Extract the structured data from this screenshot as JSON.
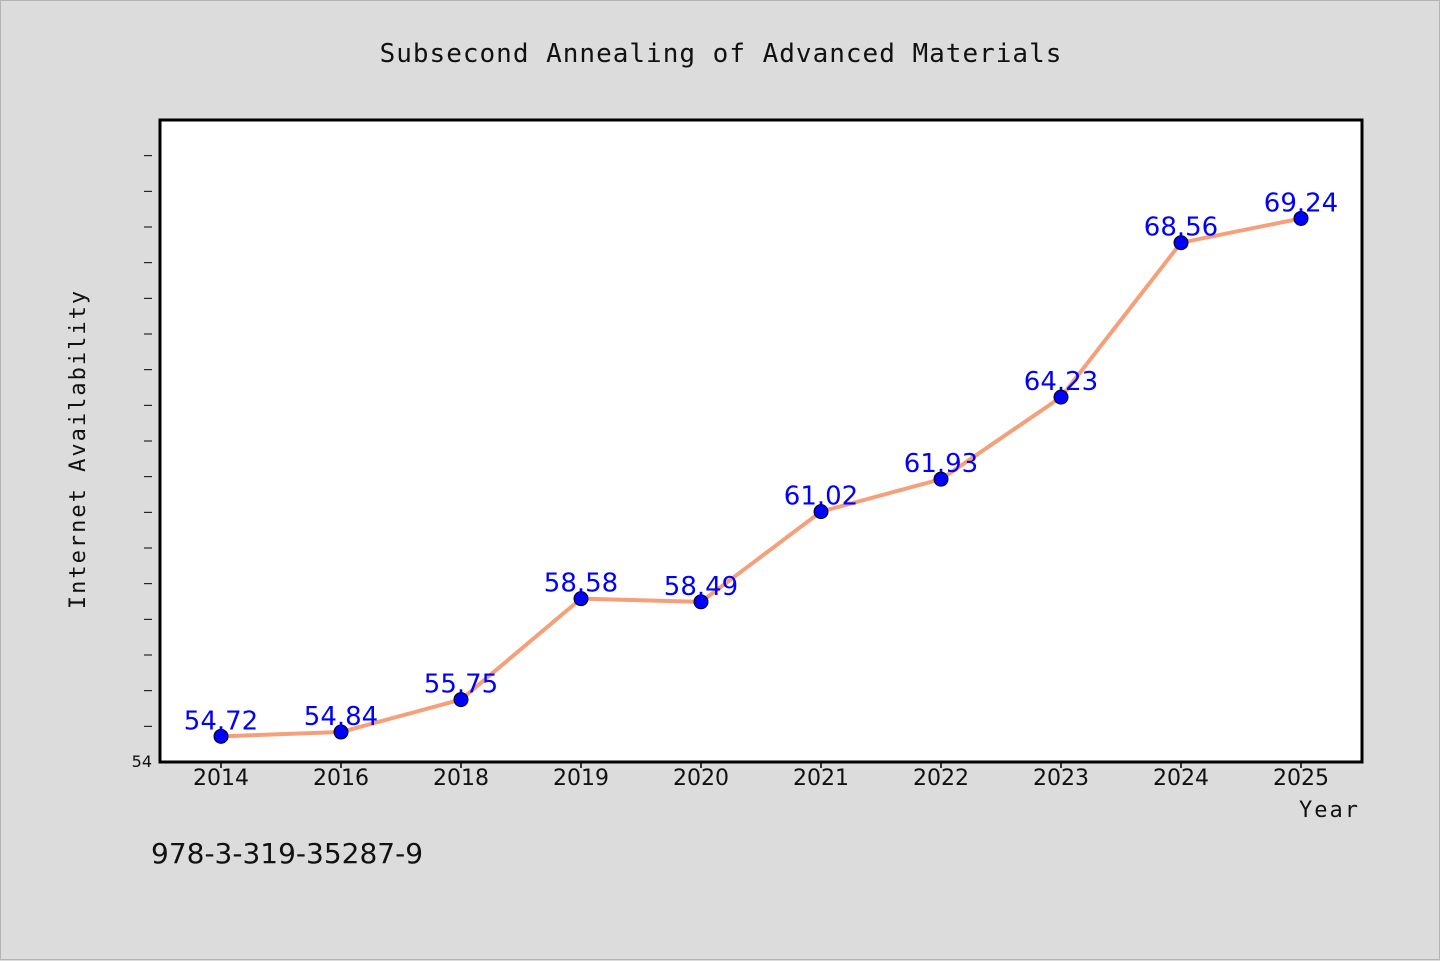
{
  "chart_data": {
    "type": "line",
    "title": "Subsecond Annealing of Advanced Materials",
    "xlabel": "Year",
    "ylabel": "Internet Availability",
    "categories": [
      "2014",
      "2016",
      "2018",
      "2019",
      "2020",
      "2021",
      "2022",
      "2023",
      "2024",
      "2025"
    ],
    "series": [
      {
        "values": [
          54.72,
          54.84,
          55.75,
          58.58,
          58.49,
          61.02,
          61.93,
          64.23,
          68.56,
          69.24
        ],
        "data_labels": [
          "54.72",
          "54.84",
          "55.75",
          "58.58",
          "58.49",
          "61.02",
          "61.93",
          "64.23",
          "68.56",
          "69.24"
        ],
        "line_color": "#f4a07a",
        "marker_color": "#0000ff"
      }
    ],
    "ylim": [
      54,
      72
    ],
    "y_tick_label": "54",
    "grid": false,
    "legend": "none"
  },
  "footnote": "978-3-319-35287-9"
}
